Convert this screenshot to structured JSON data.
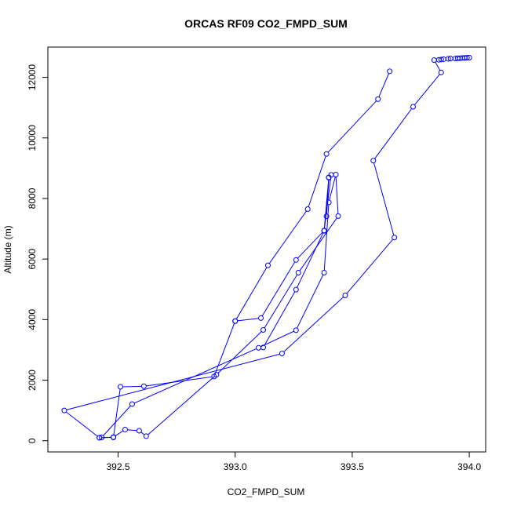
{
  "chart_data": {
    "type": "line",
    "title": "ORCAS RF09 CO2_FMPD_SUM",
    "xlabel": "CO2_FMPD_SUM",
    "ylabel": "Altitude (m)",
    "xlim": [
      392.2,
      394.07
    ],
    "ylim": [
      -370,
      13000
    ],
    "xticks": [
      392.5,
      393.0,
      393.5,
      394.0
    ],
    "xtick_labels": [
      "392.5",
      "393.0",
      "393.5",
      "394.0"
    ],
    "yticks": [
      0,
      2000,
      4000,
      6000,
      8000,
      10000,
      12000
    ],
    "ytick_labels": [
      "0",
      "2000",
      "4000",
      "6000",
      "8000",
      "10000",
      "12000"
    ],
    "grid": false,
    "markers": "open-circle",
    "color": "#0000ff",
    "series": [
      {
        "x": [
          393.66,
          393.61,
          393.39,
          393.31,
          393.14,
          393.0,
          392.91,
          392.61,
          392.51,
          392.48,
          392.42,
          392.43,
          392.56,
          393.1,
          393.26,
          393.38,
          393.4,
          393.43,
          393.44,
          393.27,
          393.12,
          392.92,
          392.62,
          392.59,
          392.53,
          392.48,
          392.42,
          392.27,
          393.2,
          393.47,
          393.68,
          393.59,
          393.76,
          393.88,
          393.85,
          393.87,
          393.88,
          393.89,
          393.91,
          393.92,
          393.94,
          393.95,
          393.96,
          393.97,
          393.98,
          393.99,
          394.0
        ],
        "y": [
          12200,
          11280,
          9470,
          7650,
          5790,
          3950,
          2120,
          1800,
          1780,
          110,
          100,
          110,
          1210,
          3070,
          3650,
          5550,
          7870,
          8790,
          7420,
          5550,
          3660,
          2180,
          150,
          330,
          370,
          120,
          100,
          1000,
          2880,
          4800,
          6710,
          9250,
          11030,
          12160,
          12570,
          12580,
          12590,
          12600,
          12610,
          12620,
          12620,
          12630,
          12630,
          12640,
          12640,
          12650,
          12650
        ]
      },
      {
        "x": [
          393.4,
          393.39,
          393.4,
          393.38,
          393.26,
          393.11,
          393.0
        ],
        "y": [
          8690,
          7410,
          8700,
          6940,
          5970,
          4050,
          3950
        ]
      },
      {
        "x": [
          393.41,
          393.38,
          393.26,
          393.12
        ],
        "y": [
          8780,
          6930,
          4990,
          3080
        ]
      }
    ]
  }
}
